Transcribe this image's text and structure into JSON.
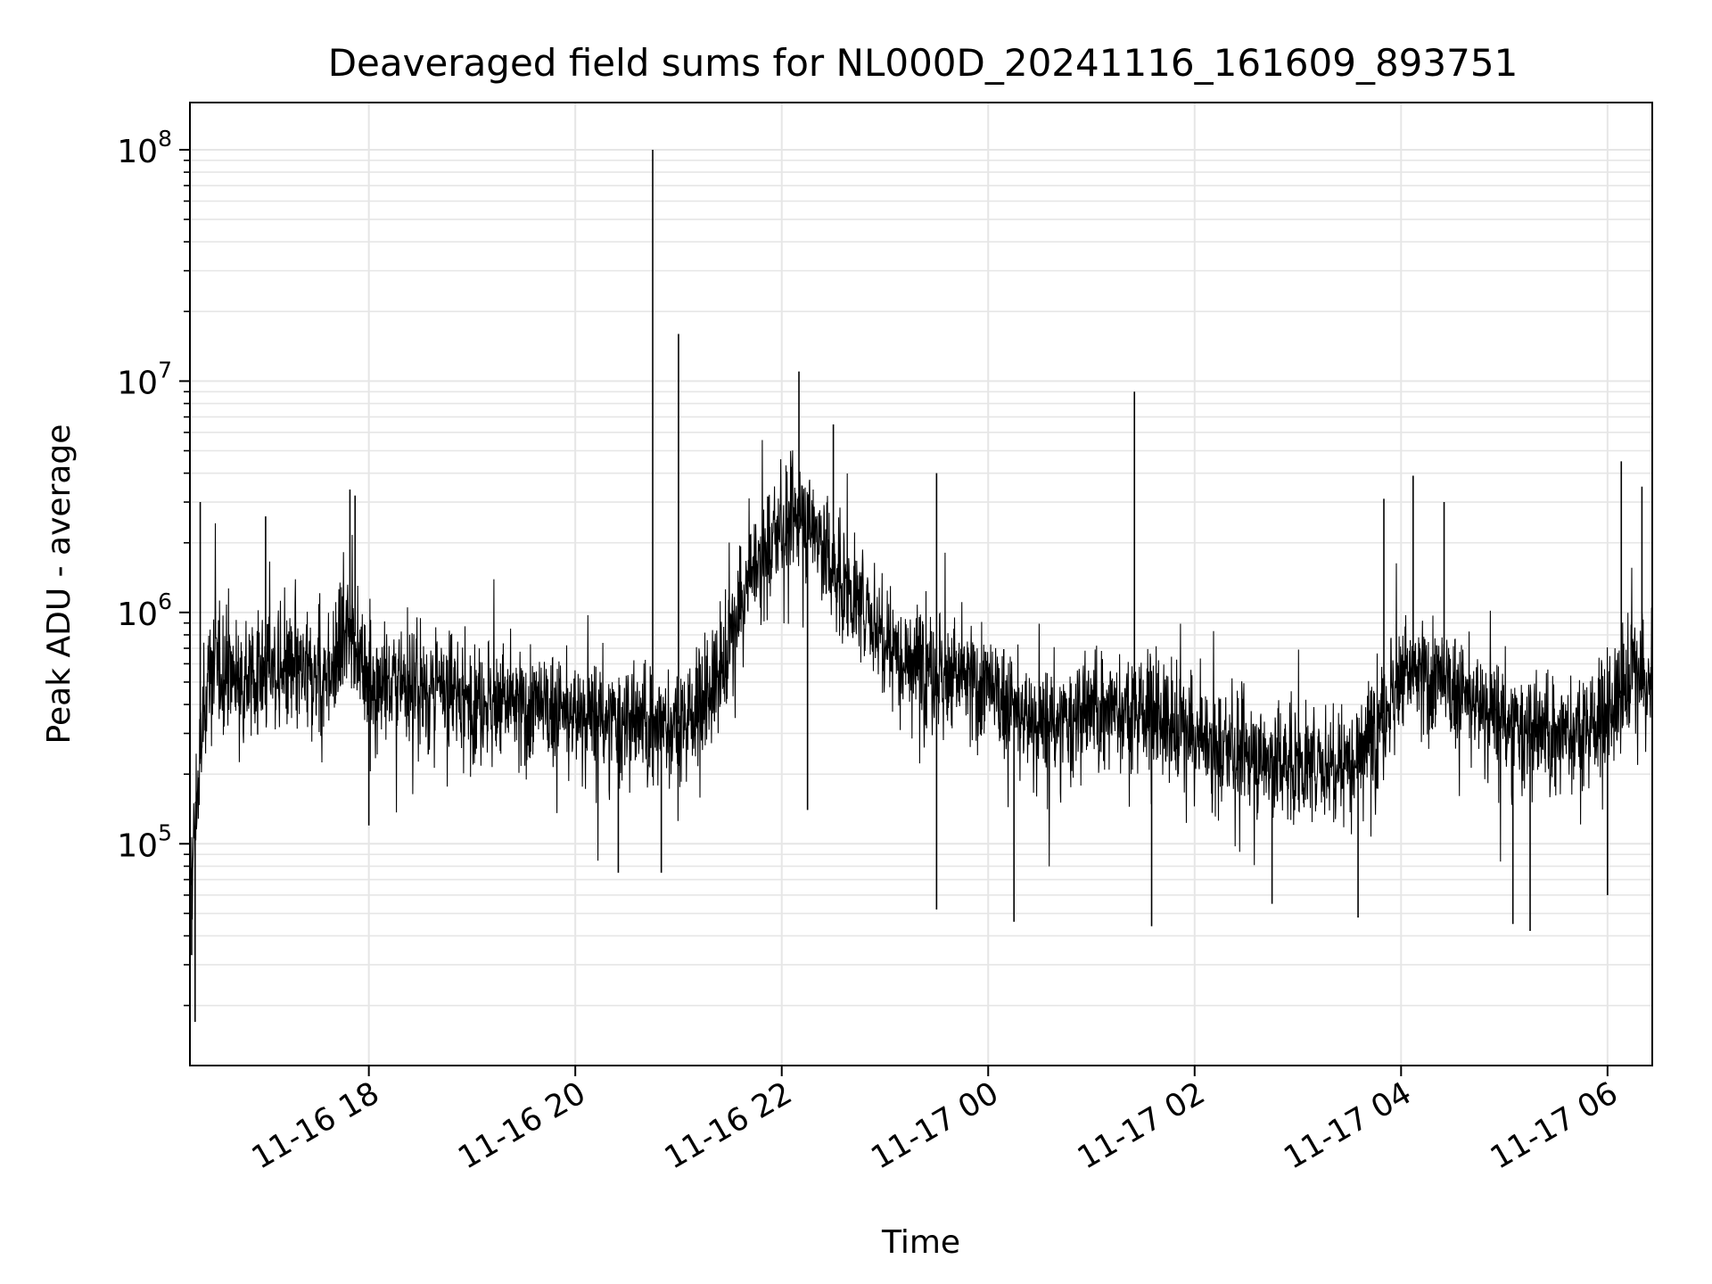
{
  "chart_data": {
    "type": "line",
    "title": "Deaveraged field sums for NL000D_20241116_161609_893751",
    "xlabel": "Time",
    "ylabel": "Peak ADU - average",
    "yscale": "log",
    "xlim": [
      "2024-11-16 16:16",
      "2024-11-17 06:26"
    ],
    "ylim": [
      11000,
      160000000
    ],
    "grid": true,
    "line_color": "#000000",
    "grid_color": "#e6e6e6",
    "x_ticks": [
      {
        "value": "2024-11-16 18:00",
        "label": "11-16 18"
      },
      {
        "value": "2024-11-16 20:00",
        "label": "11-16 20"
      },
      {
        "value": "2024-11-16 22:00",
        "label": "11-16 22"
      },
      {
        "value": "2024-11-17 00:00",
        "label": "11-17 00"
      },
      {
        "value": "2024-11-17 02:00",
        "label": "11-17 02"
      },
      {
        "value": "2024-11-17 04:00",
        "label": "11-17 04"
      },
      {
        "value": "2024-11-17 06:00",
        "label": "11-17 06"
      }
    ],
    "y_ticks": [
      {
        "value": 100000,
        "base": "10",
        "exp": "5"
      },
      {
        "value": 1000000,
        "base": "10",
        "exp": "6"
      },
      {
        "value": 10000000,
        "base": "10",
        "exp": "7"
      },
      {
        "value": 100000000,
        "base": "10",
        "exp": "8"
      }
    ],
    "series": [
      {
        "x": [
          "2024-11-16 16:16",
          "2024-11-16 16:20",
          "2024-11-16 16:25",
          "2024-11-16 16:30",
          "2024-11-16 16:40",
          "2024-11-16 16:50",
          "2024-11-16 17:00",
          "2024-11-16 17:10",
          "2024-11-16 17:20",
          "2024-11-16 17:30",
          "2024-11-16 17:40",
          "2024-11-16 17:50",
          "2024-11-16 17:55",
          "2024-11-16 18:00",
          "2024-11-16 18:15",
          "2024-11-16 18:30",
          "2024-11-16 18:45",
          "2024-11-16 19:00",
          "2024-11-16 19:15",
          "2024-11-16 19:30",
          "2024-11-16 19:45",
          "2024-11-16 20:00",
          "2024-11-16 20:15",
          "2024-11-16 20:30",
          "2024-11-16 20:45",
          "2024-11-16 21:00",
          "2024-11-16 21:15",
          "2024-11-16 21:30",
          "2024-11-16 21:40",
          "2024-11-16 21:50",
          "2024-11-16 22:00",
          "2024-11-16 22:10",
          "2024-11-16 22:20",
          "2024-11-16 22:30",
          "2024-11-16 22:45",
          "2024-11-16 23:00",
          "2024-11-16 23:15",
          "2024-11-16 23:30",
          "2024-11-16 23:45",
          "2024-11-17 00:00",
          "2024-11-17 00:15",
          "2024-11-17 00:30",
          "2024-11-17 00:45",
          "2024-11-17 01:00",
          "2024-11-17 01:15",
          "2024-11-17 01:30",
          "2024-11-17 01:45",
          "2024-11-17 02:00",
          "2024-11-17 02:15",
          "2024-11-17 02:30",
          "2024-11-17 02:45",
          "2024-11-17 03:00",
          "2024-11-17 03:15",
          "2024-11-17 03:30",
          "2024-11-17 03:45",
          "2024-11-17 04:00",
          "2024-11-17 04:15",
          "2024-11-17 04:30",
          "2024-11-17 04:45",
          "2024-11-17 05:00",
          "2024-11-17 05:15",
          "2024-11-17 05:30",
          "2024-11-17 05:45",
          "2024-11-17 06:00",
          "2024-11-17 06:15",
          "2024-11-17 06:26"
        ],
        "values": [
          60000,
          150000,
          450000,
          600000,
          550000,
          520000,
          560000,
          540000,
          520000,
          540000,
          560000,
          900000,
          650000,
          520000,
          480000,
          470000,
          450000,
          420000,
          420000,
          380000,
          380000,
          360000,
          340000,
          330000,
          320000,
          330000,
          400000,
          700000,
          1300000,
          1800000,
          2200000,
          2600000,
          2300000,
          1500000,
          1100000,
          800000,
          620000,
          560000,
          520000,
          460000,
          380000,
          320000,
          330000,
          370000,
          380000,
          380000,
          330000,
          280000,
          250000,
          240000,
          230000,
          220000,
          220000,
          240000,
          300000,
          550000,
          520000,
          460000,
          400000,
          330000,
          300000,
          290000,
          320000,
          350000,
          550000,
          450000
        ],
        "spikes": [
          {
            "x": "2024-11-16 16:22",
            "value": 3000000
          },
          {
            "x": "2024-11-16 17:00",
            "value": 2600000
          },
          {
            "x": "2024-11-16 17:49",
            "value": 3400000
          },
          {
            "x": "2024-11-16 17:52",
            "value": 3200000
          },
          {
            "x": "2024-11-16 20:45",
            "value": 100000000
          },
          {
            "x": "2024-11-16 21:00",
            "value": 16000000
          },
          {
            "x": "2024-11-16 22:10",
            "value": 11000000
          },
          {
            "x": "2024-11-16 22:30",
            "value": 6500000
          },
          {
            "x": "2024-11-16 23:30",
            "value": 4000000
          },
          {
            "x": "2024-11-17 01:25",
            "value": 9000000
          },
          {
            "x": "2024-11-17 03:50",
            "value": 3100000
          },
          {
            "x": "2024-11-17 04:07",
            "value": 3900000
          },
          {
            "x": "2024-11-17 04:25",
            "value": 3000000
          },
          {
            "x": "2024-11-17 06:08",
            "value": 4500000
          },
          {
            "x": "2024-11-17 06:20",
            "value": 3500000
          }
        ],
        "dips": [
          {
            "x": "2024-11-16 16:19",
            "value": 17000
          },
          {
            "x": "2024-11-16 16:17",
            "value": 33000
          },
          {
            "x": "2024-11-16 18:00",
            "value": 120000
          },
          {
            "x": "2024-11-16 20:25",
            "value": 75000
          },
          {
            "x": "2024-11-16 20:50",
            "value": 75000
          },
          {
            "x": "2024-11-16 22:15",
            "value": 140000
          },
          {
            "x": "2024-11-16 23:30",
            "value": 52000
          },
          {
            "x": "2024-11-17 00:15",
            "value": 46000
          },
          {
            "x": "2024-11-17 01:35",
            "value": 44000
          },
          {
            "x": "2024-11-17 02:45",
            "value": 55000
          },
          {
            "x": "2024-11-17 03:35",
            "value": 48000
          },
          {
            "x": "2024-11-17 05:05",
            "value": 45000
          },
          {
            "x": "2024-11-17 05:15",
            "value": 42000
          },
          {
            "x": "2024-11-17 06:00",
            "value": 60000
          }
        ]
      }
    ]
  }
}
